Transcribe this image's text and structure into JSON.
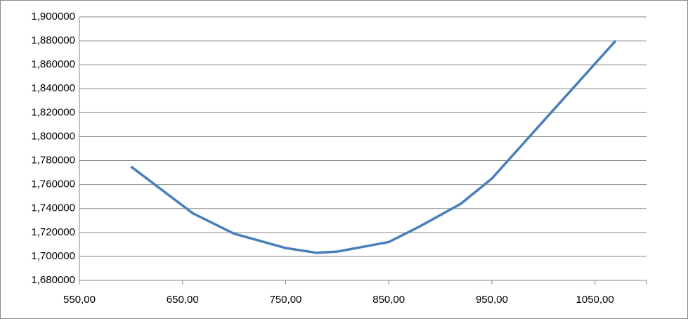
{
  "chart_data": {
    "type": "line",
    "x": [
      600,
      660,
      700,
      750,
      780,
      800,
      850,
      880,
      920,
      950,
      1000,
      1070
    ],
    "series": [
      {
        "color": "#4a7ebb",
        "values": [
          1.775,
          1.736,
          1.719,
          1.707,
          1.703,
          1.704,
          1.712,
          1.725,
          1.744,
          1.765,
          1.813,
          1.88
        ]
      }
    ],
    "xlim": [
      550,
      1100
    ],
    "xticks": [
      {
        "value": 550,
        "label": "550,00"
      },
      {
        "value": 650,
        "label": "650,00"
      },
      {
        "value": 750,
        "label": "750,00"
      },
      {
        "value": 850,
        "label": "850,00"
      },
      {
        "value": 950,
        "label": "950,00"
      },
      {
        "value": 1050,
        "label": "1050,00"
      }
    ],
    "ylim": [
      1.68,
      1.9
    ],
    "yticks": [
      {
        "value": 1.68,
        "label": "1,680000"
      },
      {
        "value": 1.7,
        "label": "1,700000"
      },
      {
        "value": 1.72,
        "label": "1,720000"
      },
      {
        "value": 1.74,
        "label": "1,740000"
      },
      {
        "value": 1.76,
        "label": "1,760000"
      },
      {
        "value": 1.78,
        "label": "1,780000"
      },
      {
        "value": 1.8,
        "label": "1,800000"
      },
      {
        "value": 1.82,
        "label": "1,820000"
      },
      {
        "value": 1.84,
        "label": "1,840000"
      },
      {
        "value": 1.86,
        "label": "1,860000"
      },
      {
        "value": 1.88,
        "label": "1,880000"
      },
      {
        "value": 1.9,
        "label": "1,900000"
      }
    ],
    "grid": true
  }
}
